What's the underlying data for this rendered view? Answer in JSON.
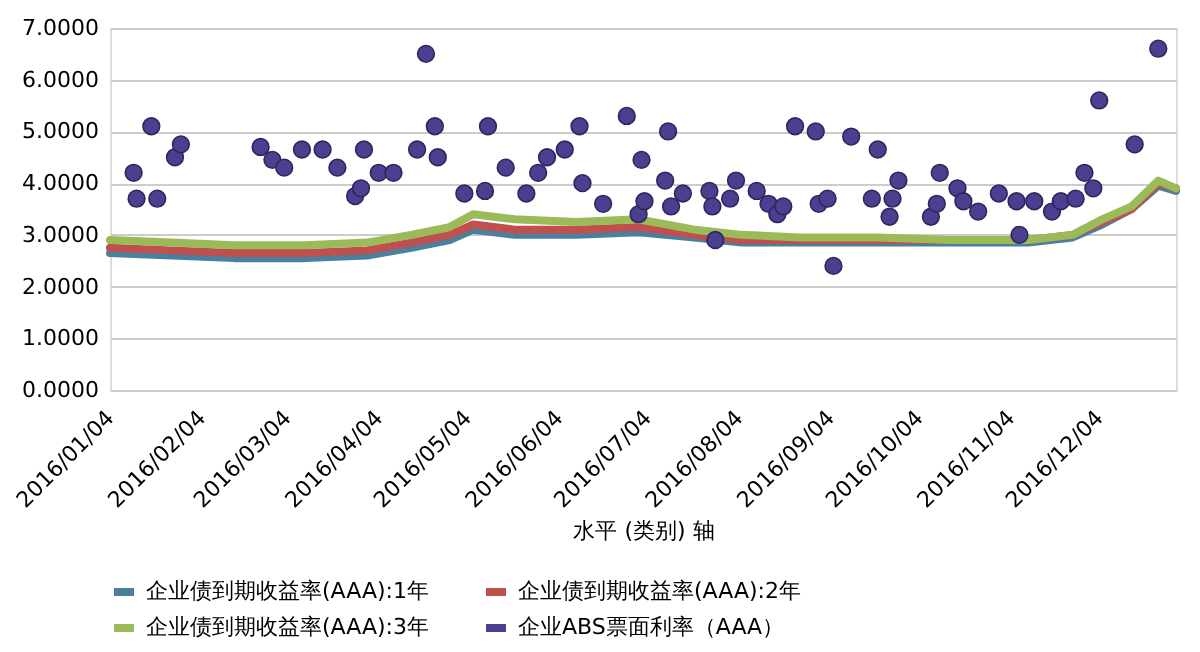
{
  "chart_data": {
    "type": "line",
    "xlabel": "水平 (类别) 轴",
    "xlim": [
      "2016-01-04",
      "2016-12-30"
    ],
    "xticks": [
      {
        "value": "2016-01-04",
        "label": "2016/01/04"
      },
      {
        "value": "2016-02-04",
        "label": "2016/02/04"
      },
      {
        "value": "2016-03-04",
        "label": "2016/03/04"
      },
      {
        "value": "2016-04-04",
        "label": "2016/04/04"
      },
      {
        "value": "2016-05-04",
        "label": "2016/05/04"
      },
      {
        "value": "2016-06-04",
        "label": "2016/06/04"
      },
      {
        "value": "2016-07-04",
        "label": "2016/07/04"
      },
      {
        "value": "2016-08-04",
        "label": "2016/08/04"
      },
      {
        "value": "2016-09-04",
        "label": "2016/09/04"
      },
      {
        "value": "2016-10-04",
        "label": "2016/10/04"
      },
      {
        "value": "2016-11-04",
        "label": "2016/11/04"
      },
      {
        "value": "2016-12-04",
        "label": "2016/12/04"
      }
    ],
    "ylim": [
      0,
      7
    ],
    "yticks": [
      {
        "value": 0,
        "label": "0.0000"
      },
      {
        "value": 1,
        "label": "1.0000"
      },
      {
        "value": 2,
        "label": "2.0000"
      },
      {
        "value": 3,
        "label": "3.0000"
      },
      {
        "value": 4,
        "label": "4.0000"
      },
      {
        "value": 5,
        "label": "5.0000"
      },
      {
        "value": 6,
        "label": "6.0000"
      },
      {
        "value": 7,
        "label": "7.0000"
      }
    ],
    "grid": "y",
    "legend": "bottom",
    "marker": "none",
    "line_style": "solid",
    "series": [
      {
        "name": "企业债到期收益率(AAA):1年",
        "color": "#4a7fa0",
        "x": [
          "2016-01-04",
          "2016-01-25",
          "2016-02-15",
          "2016-03-10",
          "2016-03-31",
          "2016-04-15",
          "2016-04-28",
          "2016-05-06",
          "2016-05-20",
          "2016-06-10",
          "2016-07-01",
          "2016-07-20",
          "2016-08-05",
          "2016-08-25",
          "2016-09-20",
          "2016-10-15",
          "2016-11-10",
          "2016-11-25",
          "2016-12-05",
          "2016-12-15",
          "2016-12-24",
          "2016-12-30"
        ],
        "values": [
          2.65,
          2.6,
          2.55,
          2.55,
          2.6,
          2.75,
          2.9,
          3.1,
          3.0,
          3.0,
          3.05,
          2.95,
          2.85,
          2.85,
          2.85,
          2.85,
          2.85,
          2.95,
          3.2,
          3.5,
          3.95,
          3.85
        ]
      },
      {
        "name": "企业债到期收益率(AAA):2年",
        "color": "#c0504d",
        "x": [
          "2016-01-04",
          "2016-01-25",
          "2016-02-15",
          "2016-03-10",
          "2016-03-31",
          "2016-04-15",
          "2016-04-28",
          "2016-05-06",
          "2016-05-20",
          "2016-06-10",
          "2016-07-01",
          "2016-07-20",
          "2016-08-05",
          "2016-08-25",
          "2016-09-20",
          "2016-10-15",
          "2016-11-10",
          "2016-11-25",
          "2016-12-05",
          "2016-12-15",
          "2016-12-24",
          "2016-12-30"
        ],
        "values": [
          2.75,
          2.7,
          2.65,
          2.65,
          2.7,
          2.85,
          3.0,
          3.2,
          3.1,
          3.1,
          3.15,
          3.0,
          2.9,
          2.9,
          2.9,
          2.9,
          2.9,
          3.0,
          3.25,
          3.5,
          4.0,
          3.9
        ]
      },
      {
        "name": "企业债到期收益率(AAA):3年",
        "color": "#9bbb59",
        "x": [
          "2016-01-04",
          "2016-01-25",
          "2016-02-15",
          "2016-03-10",
          "2016-03-31",
          "2016-04-15",
          "2016-04-28",
          "2016-05-06",
          "2016-05-20",
          "2016-06-10",
          "2016-07-01",
          "2016-07-20",
          "2016-08-05",
          "2016-08-25",
          "2016-09-20",
          "2016-10-15",
          "2016-11-10",
          "2016-11-25",
          "2016-12-05",
          "2016-12-15",
          "2016-12-24",
          "2016-12-30"
        ],
        "values": [
          2.9,
          2.85,
          2.8,
          2.8,
          2.85,
          3.0,
          3.15,
          3.4,
          3.3,
          3.25,
          3.3,
          3.1,
          3.0,
          2.95,
          2.95,
          2.9,
          2.9,
          3.0,
          3.3,
          3.55,
          4.05,
          3.9
        ]
      },
      {
        "name": "企业ABS票面利率（AAA）",
        "color": "#4b3f8f",
        "type": "scatter",
        "marker": "circle",
        "x": [
          "2016-01-12",
          "2016-01-13",
          "2016-01-18",
          "2016-01-20",
          "2016-01-26",
          "2016-01-28",
          "2016-02-24",
          "2016-02-28",
          "2016-03-03",
          "2016-03-09",
          "2016-03-16",
          "2016-03-21",
          "2016-03-27",
          "2016-03-29",
          "2016-03-30",
          "2016-04-04",
          "2016-04-09",
          "2016-04-17",
          "2016-04-20",
          "2016-04-23",
          "2016-04-24",
          "2016-05-03",
          "2016-05-10",
          "2016-05-11",
          "2016-05-17",
          "2016-05-24",
          "2016-05-28",
          "2016-05-31",
          "2016-06-06",
          "2016-06-11",
          "2016-06-12",
          "2016-06-19",
          "2016-06-27",
          "2016-07-01",
          "2016-07-02",
          "2016-07-03",
          "2016-07-10",
          "2016-07-11",
          "2016-07-12",
          "2016-07-16",
          "2016-07-25",
          "2016-07-26",
          "2016-07-27",
          "2016-08-01",
          "2016-08-03",
          "2016-08-10",
          "2016-08-14",
          "2016-08-17",
          "2016-08-19",
          "2016-08-23",
          "2016-08-30",
          "2016-08-31",
          "2016-09-03",
          "2016-09-05",
          "2016-09-11",
          "2016-09-18",
          "2016-09-20",
          "2016-09-24",
          "2016-09-25",
          "2016-09-27",
          "2016-10-08",
          "2016-10-10",
          "2016-10-11",
          "2016-10-17",
          "2016-10-19",
          "2016-10-24",
          "2016-10-31",
          "2016-11-06",
          "2016-11-07",
          "2016-11-12",
          "2016-11-18",
          "2016-11-21",
          "2016-11-26",
          "2016-11-29",
          "2016-12-02",
          "2016-12-04",
          "2016-12-16",
          "2016-12-24"
        ],
        "values": [
          4.2,
          3.7,
          5.1,
          3.7,
          4.5,
          4.75,
          4.7,
          4.45,
          4.3,
          4.65,
          4.65,
          4.3,
          3.75,
          3.9,
          4.65,
          4.2,
          4.2,
          4.65,
          6.5,
          5.1,
          4.5,
          3.8,
          3.85,
          5.1,
          4.3,
          3.8,
          4.2,
          4.5,
          4.65,
          5.1,
          4.0,
          3.6,
          5.3,
          3.4,
          4.45,
          3.65,
          4.05,
          5.0,
          3.55,
          3.8,
          3.85,
          3.55,
          2.9,
          3.7,
          4.05,
          3.85,
          3.6,
          3.4,
          3.55,
          5.1,
          5.0,
          3.6,
          3.7,
          2.4,
          4.9,
          3.7,
          4.65,
          3.35,
          3.7,
          4.05,
          3.35,
          3.6,
          4.2,
          3.9,
          3.65,
          3.45,
          3.8,
          3.65,
          3.0,
          3.65,
          3.45,
          3.65,
          3.7,
          4.2,
          3.9,
          5.6,
          4.75,
          6.6
        ]
      }
    ]
  }
}
